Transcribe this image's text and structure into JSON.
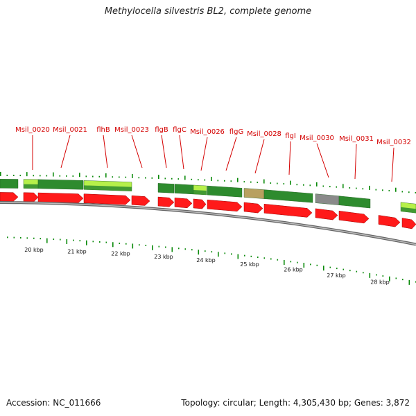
{
  "title": "Methylocella silvestris BL2, complete genome",
  "footer": {
    "accession": "Accession: NC_011666",
    "topology": "Topology: circular; Length: 4,305,430 bp; Genes: 3,872"
  },
  "colors": {
    "label_red": "#d40000",
    "cds_red": "#ff1a1a",
    "cog_green": "#2e8b2e",
    "cog_light": "#b6f04a",
    "cog_grey": "#8a8a8a",
    "cog_tan": "#b8a060",
    "gc_tick": "#0a8a0a",
    "backbone": "#888888"
  },
  "gene_labels": [
    "Msil_0020",
    "Msil_0021",
    "flhB",
    "Msil_0023",
    "flgB",
    "flgC",
    "Msil_0026",
    "flgG",
    "Msil_0028",
    "flgI",
    "Msil_0030",
    "Msil_0031",
    "Msil_0032"
  ],
  "scale_labels": [
    "20 kbp",
    "21 kbp",
    "22 kbp",
    "23 kbp",
    "24 kbp",
    "25 kbp",
    "26 kbp",
    "27 kbp",
    "28 kbp"
  ]
}
